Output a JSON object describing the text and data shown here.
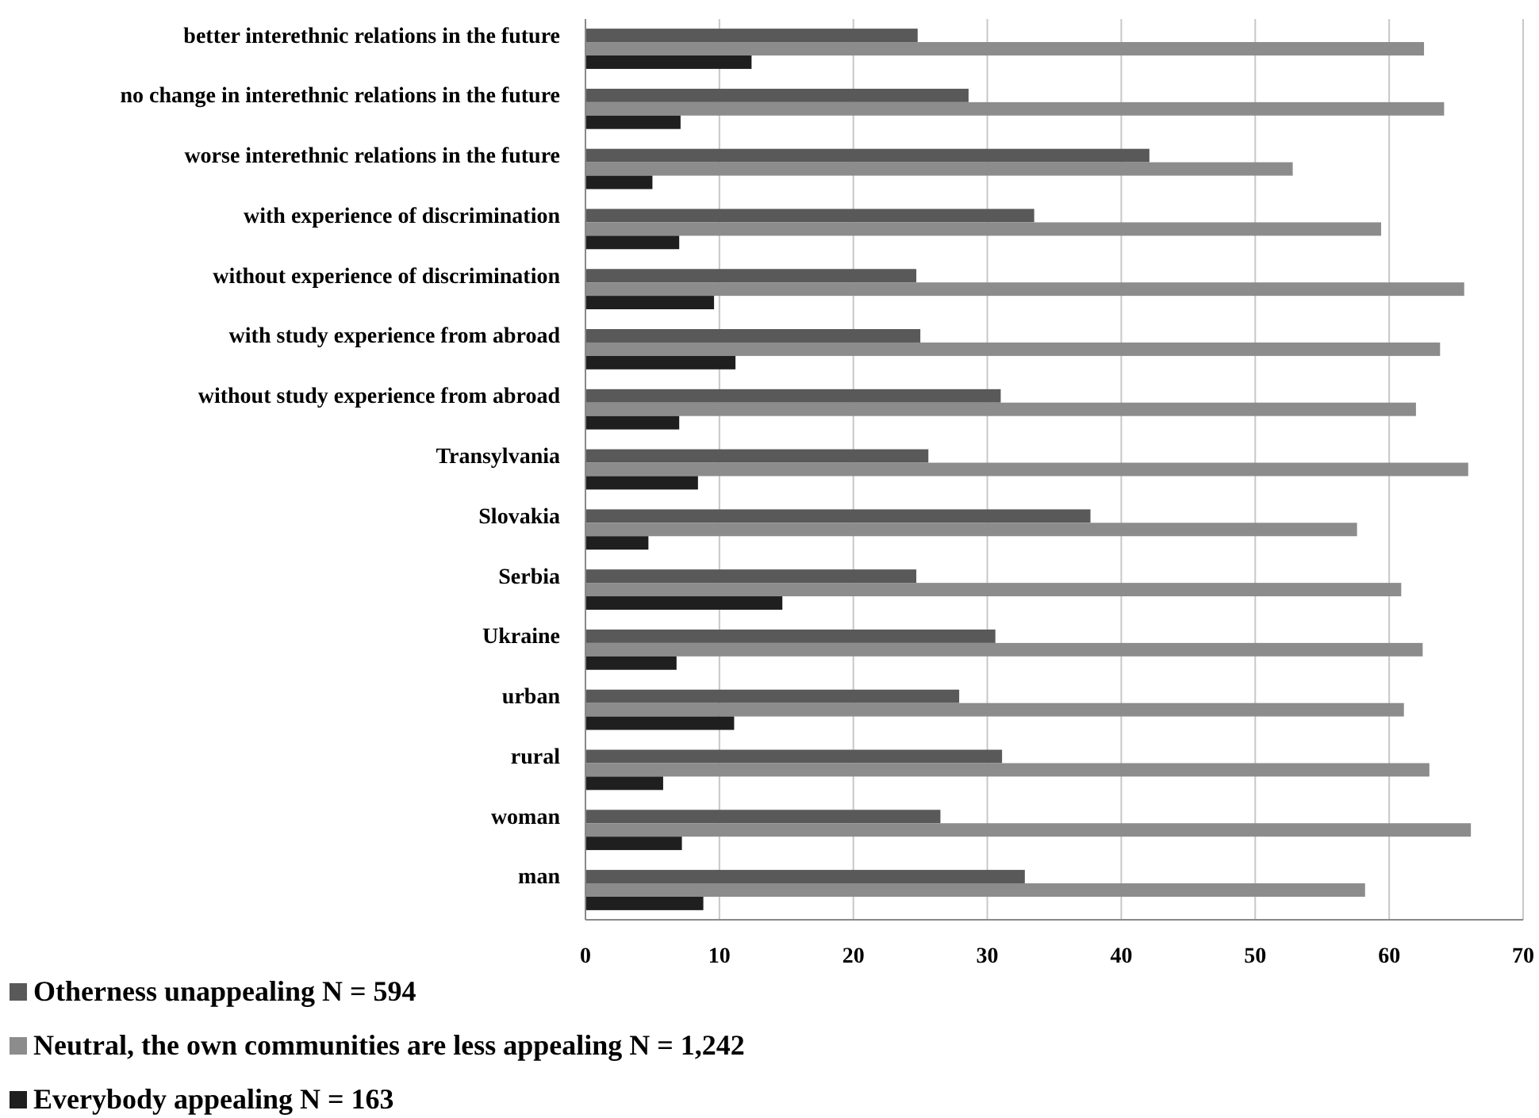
{
  "chart_data": {
    "type": "bar",
    "orientation": "horizontal",
    "categories": [
      "better interethnic relations in the future",
      "no change in interethnic relations in the future",
      "worse interethnic relations in the future",
      "with experience of discrimination",
      "without experience of discrimination",
      "with study experience from abroad",
      "without study experience from abroad",
      "Transylvania",
      "Slovakia",
      "Serbia",
      "Ukraine",
      "urban",
      "rural",
      "woman",
      "man"
    ],
    "series": [
      {
        "name": "Otherness unappealing N = 594",
        "color": "#595959",
        "values": [
          24.8,
          28.6,
          42.1,
          33.5,
          24.7,
          25.0,
          31.0,
          25.6,
          37.7,
          24.7,
          30.6,
          27.9,
          31.1,
          26.5,
          32.8
        ]
      },
      {
        "name": "Neutral,  the own communities are less appealing  N = 1,242",
        "color": "#8c8c8c",
        "values": [
          62.6,
          64.1,
          52.8,
          59.4,
          65.6,
          63.8,
          62.0,
          65.9,
          57.6,
          60.9,
          62.5,
          61.1,
          63.0,
          66.1,
          58.2
        ]
      },
      {
        "name": "Everybody appealing N = 163",
        "color": "#1f1f1f",
        "values": [
          12.4,
          7.1,
          5.0,
          7.0,
          9.6,
          11.2,
          7.0,
          8.4,
          4.7,
          14.7,
          6.8,
          11.1,
          5.8,
          7.2,
          8.8
        ]
      }
    ],
    "xlim": [
      0,
      70
    ],
    "xticks": [
      0,
      10,
      20,
      30,
      40,
      50,
      60,
      70
    ],
    "grid": "x",
    "legend": "bottom left"
  }
}
